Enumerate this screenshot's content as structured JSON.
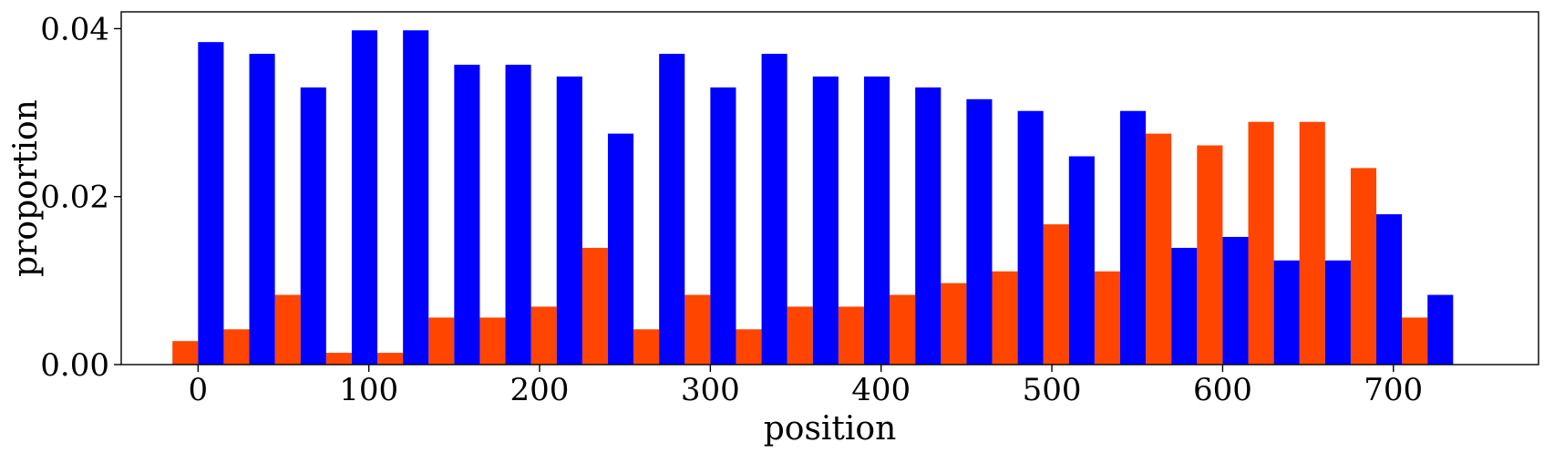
{
  "chart_data": {
    "type": "bar",
    "xlabel": "position",
    "ylabel": "proportion",
    "xlim": [
      -45,
      785
    ],
    "ylim": [
      0,
      0.042
    ],
    "xticks": [
      0,
      100,
      200,
      300,
      400,
      500,
      600,
      700
    ],
    "yticks": [
      0.0,
      0.02,
      0.04
    ],
    "ytick_labels": [
      "0.00",
      "0.02",
      "0.04"
    ],
    "grid": false,
    "legend": false,
    "bin_width": 30,
    "bin_starts": [
      0,
      30,
      60,
      90,
      120,
      150,
      180,
      210,
      240,
      270,
      300,
      330,
      360,
      390,
      420,
      450,
      480,
      510,
      540,
      570,
      600,
      630,
      660,
      690,
      720
    ],
    "series": [
      {
        "color": "#ff4500",
        "values": [
          0.0028,
          0.0042,
          0.0083,
          0.0014,
          0.0014,
          0.0056,
          0.0056,
          0.0069,
          0.0139,
          0.0042,
          0.0083,
          0.0042,
          0.0069,
          0.0069,
          0.0083,
          0.0097,
          0.0111,
          0.0167,
          0.0111,
          0.0275,
          0.0261,
          0.0289,
          0.0289,
          0.0234,
          0.0056
        ]
      },
      {
        "color": "#0000ff",
        "values": [
          0.0384,
          0.037,
          0.033,
          0.0398,
          0.0398,
          0.0357,
          0.0357,
          0.0343,
          0.0275,
          0.037,
          0.033,
          0.037,
          0.0343,
          0.0343,
          0.033,
          0.0316,
          0.0302,
          0.0248,
          0.0302,
          0.0139,
          0.0152,
          0.0124,
          0.0124,
          0.0179,
          0.0083
        ]
      }
    ]
  }
}
